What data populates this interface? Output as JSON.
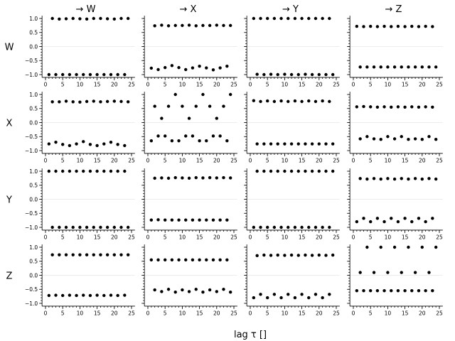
{
  "chart_data": {
    "type": "scatter",
    "title": "",
    "xlabel": "lag τ []",
    "ylabel": "",
    "variables": [
      "W",
      "X",
      "Y",
      "Z"
    ],
    "column_titles": [
      "→ W",
      "→ X",
      "→ Y",
      "→ Z"
    ],
    "row_labels": [
      "W",
      "X",
      "Y",
      "Z"
    ],
    "xlim": [
      -1,
      26
    ],
    "ylim": [
      -1.1,
      1.1
    ],
    "xticks": [
      0,
      5,
      10,
      15,
      20,
      25
    ],
    "yticks": [
      -1.0,
      -0.5,
      0.0,
      0.5,
      1.0
    ],
    "yticklabels": [
      "−1.0",
      "−0.5",
      "0.0",
      "0.5",
      "1.0"
    ],
    "grid": false,
    "panels": [
      [
        {
          "row": "W",
          "col": "W",
          "lags": [
            1,
            2,
            3,
            4,
            5,
            6,
            7,
            8,
            9,
            10,
            11,
            12,
            13,
            14,
            15,
            16,
            17,
            18,
            19,
            20,
            21,
            22,
            23,
            24
          ],
          "values": [
            -1.0,
            1.0,
            -1.0,
            0.98,
            -1.0,
            0.99,
            -1.0,
            1.0,
            -1.0,
            0.99,
            -1.0,
            0.98,
            -1.0,
            1.0,
            -1.0,
            1.0,
            -1.0,
            0.99,
            -1.0,
            0.98,
            -1.0,
            1.0,
            -1.0,
            1.0
          ]
        },
        {
          "row": "W",
          "col": "X",
          "lags": [
            1,
            2,
            3,
            4,
            5,
            6,
            7,
            8,
            9,
            10,
            11,
            12,
            13,
            14,
            15,
            16,
            17,
            18,
            19,
            20,
            21,
            22,
            23,
            24
          ],
          "values": [
            -0.77,
            0.74,
            -0.82,
            0.76,
            -0.75,
            0.74,
            -0.68,
            0.75,
            -0.75,
            0.75,
            -0.82,
            0.76,
            -0.76,
            0.74,
            -0.7,
            0.75,
            -0.76,
            0.75,
            -0.83,
            0.76,
            -0.76,
            0.75,
            -0.7,
            0.75
          ]
        },
        {
          "row": "W",
          "col": "Y",
          "lags": [
            1,
            2,
            3,
            4,
            5,
            6,
            7,
            8,
            9,
            10,
            11,
            12,
            13,
            14,
            15,
            16,
            17,
            18,
            19,
            20,
            21,
            22,
            23,
            24
          ],
          "values": [
            1.0,
            -0.99,
            1.0,
            -1.0,
            1.0,
            -0.99,
            1.0,
            -1.0,
            1.0,
            -0.99,
            1.0,
            -1.0,
            1.0,
            -1.0,
            1.0,
            -0.99,
            1.0,
            -1.0,
            1.0,
            -1.0,
            1.0,
            -1.0,
            1.0,
            -1.0
          ]
        },
        {
          "row": "W",
          "col": "Z",
          "lags": [
            1,
            2,
            3,
            4,
            5,
            6,
            7,
            8,
            9,
            10,
            11,
            12,
            13,
            14,
            15,
            16,
            17,
            18,
            19,
            20,
            21,
            22,
            23,
            24
          ],
          "values": [
            0.72,
            -0.73,
            0.71,
            -0.73,
            0.72,
            -0.73,
            0.71,
            -0.73,
            0.72,
            -0.73,
            0.71,
            -0.73,
            0.72,
            -0.73,
            0.71,
            -0.73,
            0.72,
            -0.73,
            0.71,
            -0.73,
            0.72,
            -0.73,
            0.71,
            -0.73
          ]
        }
      ],
      [
        {
          "row": "X",
          "col": "W",
          "lags": [
            1,
            2,
            3,
            4,
            5,
            6,
            7,
            8,
            9,
            10,
            11,
            12,
            13,
            14,
            15,
            16,
            17,
            18,
            19,
            20,
            21,
            22,
            23,
            24
          ],
          "values": [
            -0.76,
            0.74,
            -0.7,
            0.74,
            -0.78,
            0.76,
            -0.82,
            0.74,
            -0.76,
            0.73,
            -0.68,
            0.75,
            -0.78,
            0.76,
            -0.82,
            0.74,
            -0.76,
            0.75,
            -0.7,
            0.76,
            -0.78,
            0.75,
            -0.82,
            0.74
          ]
        },
        {
          "row": "X",
          "col": "X",
          "lags": [
            1,
            2,
            3,
            4,
            5,
            6,
            7,
            8,
            9,
            10,
            11,
            12,
            13,
            14,
            15,
            16,
            17,
            18,
            19,
            20,
            21,
            22,
            23,
            24
          ],
          "values": [
            -0.65,
            0.58,
            -0.48,
            0.15,
            -0.48,
            0.58,
            -0.65,
            1.0,
            -0.65,
            0.58,
            -0.48,
            0.15,
            -0.48,
            0.58,
            -0.65,
            1.0,
            -0.65,
            0.58,
            -0.48,
            0.15,
            -0.48,
            0.58,
            -0.65,
            1.0
          ]
        },
        {
          "row": "X",
          "col": "Y",
          "lags": [
            1,
            2,
            3,
            4,
            5,
            6,
            7,
            8,
            9,
            10,
            11,
            12,
            13,
            14,
            15,
            16,
            17,
            18,
            19,
            20,
            21,
            22,
            23,
            24
          ],
          "values": [
            0.78,
            -0.76,
            0.75,
            -0.76,
            0.77,
            -0.76,
            0.75,
            -0.76,
            0.77,
            -0.76,
            0.75,
            -0.76,
            0.77,
            -0.76,
            0.75,
            -0.76,
            0.77,
            -0.76,
            0.75,
            -0.76,
            0.77,
            -0.76,
            0.75,
            -0.76
          ]
        },
        {
          "row": "X",
          "col": "Z",
          "lags": [
            1,
            2,
            3,
            4,
            5,
            6,
            7,
            8,
            9,
            10,
            11,
            12,
            13,
            14,
            15,
            16,
            17,
            18,
            19,
            20,
            21,
            22,
            23,
            24
          ],
          "values": [
            0.56,
            -0.58,
            0.57,
            -0.5,
            0.56,
            -0.58,
            0.55,
            -0.6,
            0.56,
            -0.5,
            0.55,
            -0.58,
            0.56,
            -0.5,
            0.55,
            -0.6,
            0.56,
            -0.58,
            0.55,
            -0.6,
            0.56,
            -0.5,
            0.55,
            -0.6
          ]
        }
      ],
      [
        {
          "row": "Y",
          "col": "W",
          "lags": [
            1,
            2,
            3,
            4,
            5,
            6,
            7,
            8,
            9,
            10,
            11,
            12,
            13,
            14,
            15,
            16,
            17,
            18,
            19,
            20,
            21,
            22,
            23,
            24
          ],
          "values": [
            1.0,
            -1.0,
            1.0,
            -1.0,
            1.0,
            -1.0,
            1.0,
            -1.0,
            1.0,
            -1.0,
            1.0,
            -1.0,
            1.0,
            -1.0,
            1.0,
            -1.0,
            1.0,
            -1.0,
            1.0,
            -1.0,
            1.0,
            -1.0,
            1.0,
            -1.0
          ]
        },
        {
          "row": "Y",
          "col": "X",
          "lags": [
            1,
            2,
            3,
            4,
            5,
            6,
            7,
            8,
            9,
            10,
            11,
            12,
            13,
            14,
            15,
            16,
            17,
            18,
            19,
            20,
            21,
            22,
            23,
            24
          ],
          "values": [
            -0.74,
            0.75,
            -0.73,
            0.76,
            -0.74,
            0.75,
            -0.74,
            0.77,
            -0.74,
            0.76,
            -0.74,
            0.75,
            -0.74,
            0.77,
            -0.74,
            0.76,
            -0.74,
            0.77,
            -0.74,
            0.76,
            -0.74,
            0.77,
            -0.74,
            0.76
          ]
        },
        {
          "row": "Y",
          "col": "Y",
          "lags": [
            1,
            2,
            3,
            4,
            5,
            6,
            7,
            8,
            9,
            10,
            11,
            12,
            13,
            14,
            15,
            16,
            17,
            18,
            19,
            20,
            21,
            22,
            23,
            24
          ],
          "values": [
            -1.0,
            1.0,
            -1.0,
            1.0,
            -1.0,
            1.0,
            -1.0,
            1.0,
            -1.0,
            1.0,
            -1.0,
            1.0,
            -1.0,
            1.0,
            -1.0,
            1.0,
            -1.0,
            1.0,
            -1.0,
            1.0,
            -1.0,
            1.0,
            -1.0,
            1.0
          ]
        },
        {
          "row": "Y",
          "col": "Z",
          "lags": [
            1,
            2,
            3,
            4,
            5,
            6,
            7,
            8,
            9,
            10,
            11,
            12,
            13,
            14,
            15,
            16,
            17,
            18,
            19,
            20,
            21,
            22,
            23,
            24
          ],
          "values": [
            -0.8,
            0.74,
            -0.68,
            0.72,
            -0.8,
            0.74,
            -0.68,
            0.72,
            -0.8,
            0.74,
            -0.68,
            0.72,
            -0.8,
            0.74,
            -0.68,
            0.72,
            -0.8,
            0.74,
            -0.68,
            0.72,
            -0.8,
            0.74,
            -0.68,
            0.72
          ]
        }
      ],
      [
        {
          "row": "Z",
          "col": "W",
          "lags": [
            1,
            2,
            3,
            4,
            5,
            6,
            7,
            8,
            9,
            10,
            11,
            12,
            13,
            14,
            15,
            16,
            17,
            18,
            19,
            20,
            21,
            22,
            23,
            24
          ],
          "values": [
            -0.72,
            0.73,
            -0.71,
            0.73,
            -0.72,
            0.73,
            -0.71,
            0.73,
            -0.72,
            0.73,
            -0.71,
            0.73,
            -0.72,
            0.73,
            -0.71,
            0.73,
            -0.72,
            0.73,
            -0.71,
            0.73,
            -0.72,
            0.73,
            -0.71,
            0.73
          ]
        },
        {
          "row": "Z",
          "col": "X",
          "lags": [
            1,
            2,
            3,
            4,
            5,
            6,
            7,
            8,
            9,
            10,
            11,
            12,
            13,
            14,
            15,
            16,
            17,
            18,
            19,
            20,
            21,
            22,
            23,
            24
          ],
          "values": [
            0.55,
            -0.52,
            0.55,
            -0.58,
            0.55,
            -0.5,
            0.55,
            -0.6,
            0.55,
            -0.52,
            0.55,
            -0.58,
            0.55,
            -0.5,
            0.55,
            -0.6,
            0.55,
            -0.52,
            0.55,
            -0.58,
            0.55,
            -0.5,
            0.55,
            -0.6
          ]
        },
        {
          "row": "Z",
          "col": "Y",
          "lags": [
            1,
            2,
            3,
            4,
            5,
            6,
            7,
            8,
            9,
            10,
            11,
            12,
            13,
            14,
            15,
            16,
            17,
            18,
            19,
            20,
            21,
            22,
            23,
            24
          ],
          "values": [
            -0.8,
            0.7,
            -0.68,
            0.72,
            -0.8,
            0.71,
            -0.68,
            0.72,
            -0.8,
            0.71,
            -0.68,
            0.72,
            -0.8,
            0.71,
            -0.68,
            0.72,
            -0.8,
            0.71,
            -0.68,
            0.72,
            -0.8,
            0.71,
            -0.68,
            0.72
          ]
        },
        {
          "row": "Z",
          "col": "Z",
          "lags": [
            1,
            2,
            3,
            4,
            5,
            6,
            7,
            8,
            9,
            10,
            11,
            12,
            13,
            14,
            15,
            16,
            17,
            18,
            19,
            20,
            21,
            22,
            23,
            24
          ],
          "values": [
            -0.55,
            0.1,
            -0.55,
            1.0,
            -0.55,
            0.1,
            -0.55,
            1.0,
            -0.55,
            0.1,
            -0.55,
            1.0,
            -0.55,
            0.1,
            -0.55,
            1.0,
            -0.55,
            0.1,
            -0.55,
            1.0,
            -0.55,
            0.1,
            -0.55,
            1.0
          ]
        }
      ]
    ]
  }
}
